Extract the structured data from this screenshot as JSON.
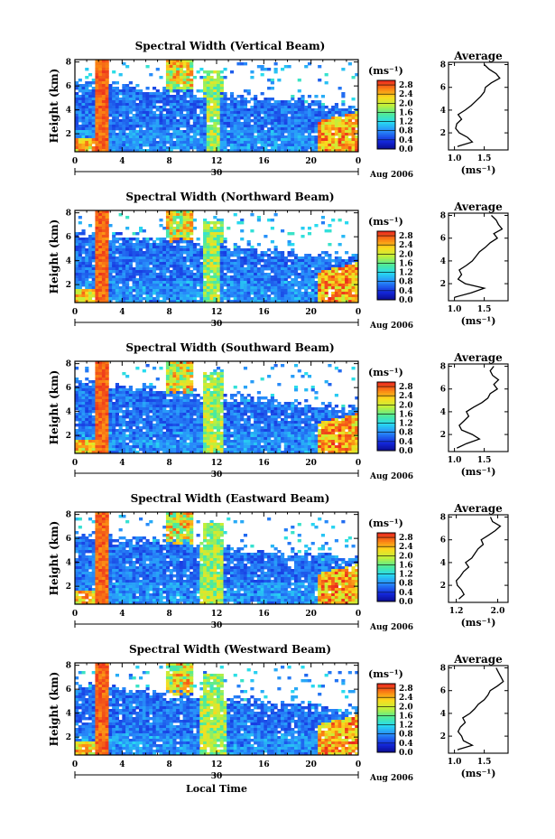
{
  "chart_data": [
    {
      "type": "heatmap",
      "title": "Spectral Width (Vertical Beam)",
      "ylabel": "Height (km)",
      "x_ticks": [
        "0",
        "4",
        "8",
        "12",
        "16",
        "20",
        "0"
      ],
      "y_ticks": [
        "2",
        "4",
        "6",
        "8"
      ],
      "date_day": "30",
      "date_month": "Aug 2006",
      "colorbar_unit": "(ms⁻¹)",
      "colorbar_ticks": [
        "0.0",
        "0.4",
        "0.8",
        "1.2",
        "1.6",
        "2.0",
        "2.4",
        "2.8"
      ],
      "zlim": [
        0.0,
        3.0
      ],
      "profile": {
        "title": "Average",
        "xlabel": "(ms⁻¹)",
        "x_ticks": [
          "1.0",
          "1.5"
        ],
        "xlim": [
          0.9,
          1.9
        ],
        "y_ticks": [
          "2",
          "4",
          "6",
          "8"
        ],
        "heights": [
          0.8,
          1.2,
          1.6,
          2.0,
          2.4,
          2.8,
          3.2,
          3.6,
          4.0,
          4.4,
          4.8,
          5.2,
          5.6,
          6.0,
          6.4,
          6.8,
          7.2,
          7.6,
          8.0
        ],
        "values": [
          1.05,
          1.3,
          1.22,
          1.08,
          1.02,
          1.04,
          1.12,
          1.06,
          1.18,
          1.28,
          1.36,
          1.44,
          1.5,
          1.52,
          1.62,
          1.76,
          1.7,
          1.58,
          1.5
        ]
      }
    },
    {
      "type": "heatmap",
      "title": "Spectral Width (Northward Beam)",
      "ylabel": "Height (km)",
      "x_ticks": [
        "0",
        "4",
        "8",
        "12",
        "16",
        "20",
        "0"
      ],
      "y_ticks": [
        "2",
        "4",
        "6",
        "8"
      ],
      "date_day": "30",
      "date_month": "Aug 2006",
      "colorbar_unit": "(ms⁻¹)",
      "colorbar_ticks": [
        "0.0",
        "0.4",
        "0.8",
        "1.2",
        "1.6",
        "2.0",
        "2.4",
        "2.8"
      ],
      "zlim": [
        0.0,
        3.0
      ],
      "profile": {
        "title": "Average",
        "xlabel": "(ms⁻¹)",
        "x_ticks": [
          "1.0",
          "1.5"
        ],
        "xlim": [
          0.9,
          1.9
        ],
        "y_ticks": [
          "2",
          "4",
          "6",
          "8"
        ],
        "heights": [
          0.8,
          1.2,
          1.6,
          2.0,
          2.4,
          2.8,
          3.2,
          3.6,
          4.0,
          4.4,
          4.8,
          5.2,
          5.6,
          6.0,
          6.4,
          6.8,
          7.2,
          7.6,
          8.0
        ],
        "values": [
          1.0,
          1.28,
          1.5,
          1.18,
          1.06,
          1.12,
          1.08,
          1.2,
          1.3,
          1.36,
          1.42,
          1.52,
          1.6,
          1.72,
          1.66,
          1.8,
          1.74,
          1.7,
          1.62
        ]
      }
    },
    {
      "type": "heatmap",
      "title": "Spectral Width (Southward Beam)",
      "ylabel": "Height (km)",
      "x_ticks": [
        "0",
        "4",
        "8",
        "12",
        "16",
        "20",
        "0"
      ],
      "y_ticks": [
        "2",
        "4",
        "6",
        "8"
      ],
      "date_day": "30",
      "date_month": "Aug 2006",
      "colorbar_unit": "(ms⁻¹)",
      "colorbar_ticks": [
        "0.0",
        "0.4",
        "0.8",
        "1.2",
        "1.6",
        "2.0",
        "2.4",
        "2.8"
      ],
      "zlim": [
        0.0,
        3.0
      ],
      "profile": {
        "title": "Average",
        "xlabel": "(ms⁻¹)",
        "x_ticks": [
          "1.0",
          "1.5"
        ],
        "xlim": [
          0.9,
          1.9
        ],
        "y_ticks": [
          "2",
          "4",
          "6",
          "8"
        ],
        "heights": [
          0.8,
          1.2,
          1.6,
          2.0,
          2.4,
          2.8,
          3.2,
          3.6,
          4.0,
          4.4,
          4.8,
          5.2,
          5.6,
          6.0,
          6.4,
          6.8,
          7.2,
          7.6,
          8.0
        ],
        "values": [
          1.04,
          1.2,
          1.42,
          1.3,
          1.12,
          1.08,
          1.16,
          1.24,
          1.2,
          1.32,
          1.46,
          1.56,
          1.6,
          1.72,
          1.66,
          1.74,
          1.64,
          1.6,
          1.66
        ]
      }
    },
    {
      "type": "heatmap",
      "title": "Spectral Width (Eastward Beam)",
      "ylabel": "Height (km)",
      "x_ticks": [
        "0",
        "4",
        "8",
        "12",
        "16",
        "20",
        "0"
      ],
      "y_ticks": [
        "2",
        "4",
        "6",
        "8"
      ],
      "date_day": "30",
      "date_month": "Aug 2006",
      "colorbar_unit": "(ms⁻¹)",
      "colorbar_ticks": [
        "0.0",
        "0.4",
        "0.8",
        "1.2",
        "1.6",
        "2.0",
        "2.4",
        "2.8"
      ],
      "zlim": [
        0.0,
        3.0
      ],
      "profile": {
        "title": "Average",
        "xlabel": "(ms⁻¹)",
        "x_ticks": [
          "1.2",
          "2.0"
        ],
        "xlim": [
          1.05,
          2.2
        ],
        "y_ticks": [
          "2",
          "4",
          "6",
          "8"
        ],
        "heights": [
          0.8,
          1.2,
          1.6,
          2.0,
          2.4,
          2.8,
          3.2,
          3.6,
          4.0,
          4.4,
          4.8,
          5.2,
          5.6,
          6.0,
          6.4,
          6.8,
          7.2,
          7.6,
          8.0
        ],
        "values": [
          1.25,
          1.35,
          1.3,
          1.22,
          1.2,
          1.28,
          1.34,
          1.44,
          1.38,
          1.5,
          1.56,
          1.62,
          1.72,
          1.68,
          1.82,
          1.95,
          2.05,
          1.9,
          1.86
        ]
      }
    },
    {
      "type": "heatmap",
      "title": "Spectral Width (Westward Beam)",
      "ylabel": "Height (km)",
      "xlabel": "Local Time",
      "x_ticks": [
        "0",
        "4",
        "8",
        "12",
        "16",
        "20",
        "0"
      ],
      "y_ticks": [
        "2",
        "4",
        "6",
        "8"
      ],
      "date_day": "30",
      "date_month": "Aug 2006",
      "colorbar_unit": "(ms⁻¹)",
      "colorbar_ticks": [
        "0.0",
        "0.4",
        "0.8",
        "1.2",
        "1.6",
        "2.0",
        "2.4",
        "2.8"
      ],
      "zlim": [
        0.0,
        3.0
      ],
      "profile": {
        "title": "Average",
        "xlabel": "(ms⁻¹)",
        "x_ticks": [
          "1.0",
          "1.5"
        ],
        "xlim": [
          0.9,
          1.9
        ],
        "y_ticks": [
          "2",
          "4",
          "6",
          "8"
        ],
        "heights": [
          0.8,
          1.2,
          1.6,
          2.0,
          2.4,
          2.8,
          3.2,
          3.6,
          4.0,
          4.4,
          4.8,
          5.2,
          5.6,
          6.0,
          6.4,
          6.8,
          7.2,
          7.6,
          8.0
        ],
        "values": [
          1.05,
          1.3,
          1.15,
          1.12,
          1.06,
          1.1,
          1.18,
          1.14,
          1.26,
          1.34,
          1.4,
          1.5,
          1.56,
          1.6,
          1.72,
          1.82,
          1.78,
          1.74,
          1.7
        ]
      }
    }
  ]
}
